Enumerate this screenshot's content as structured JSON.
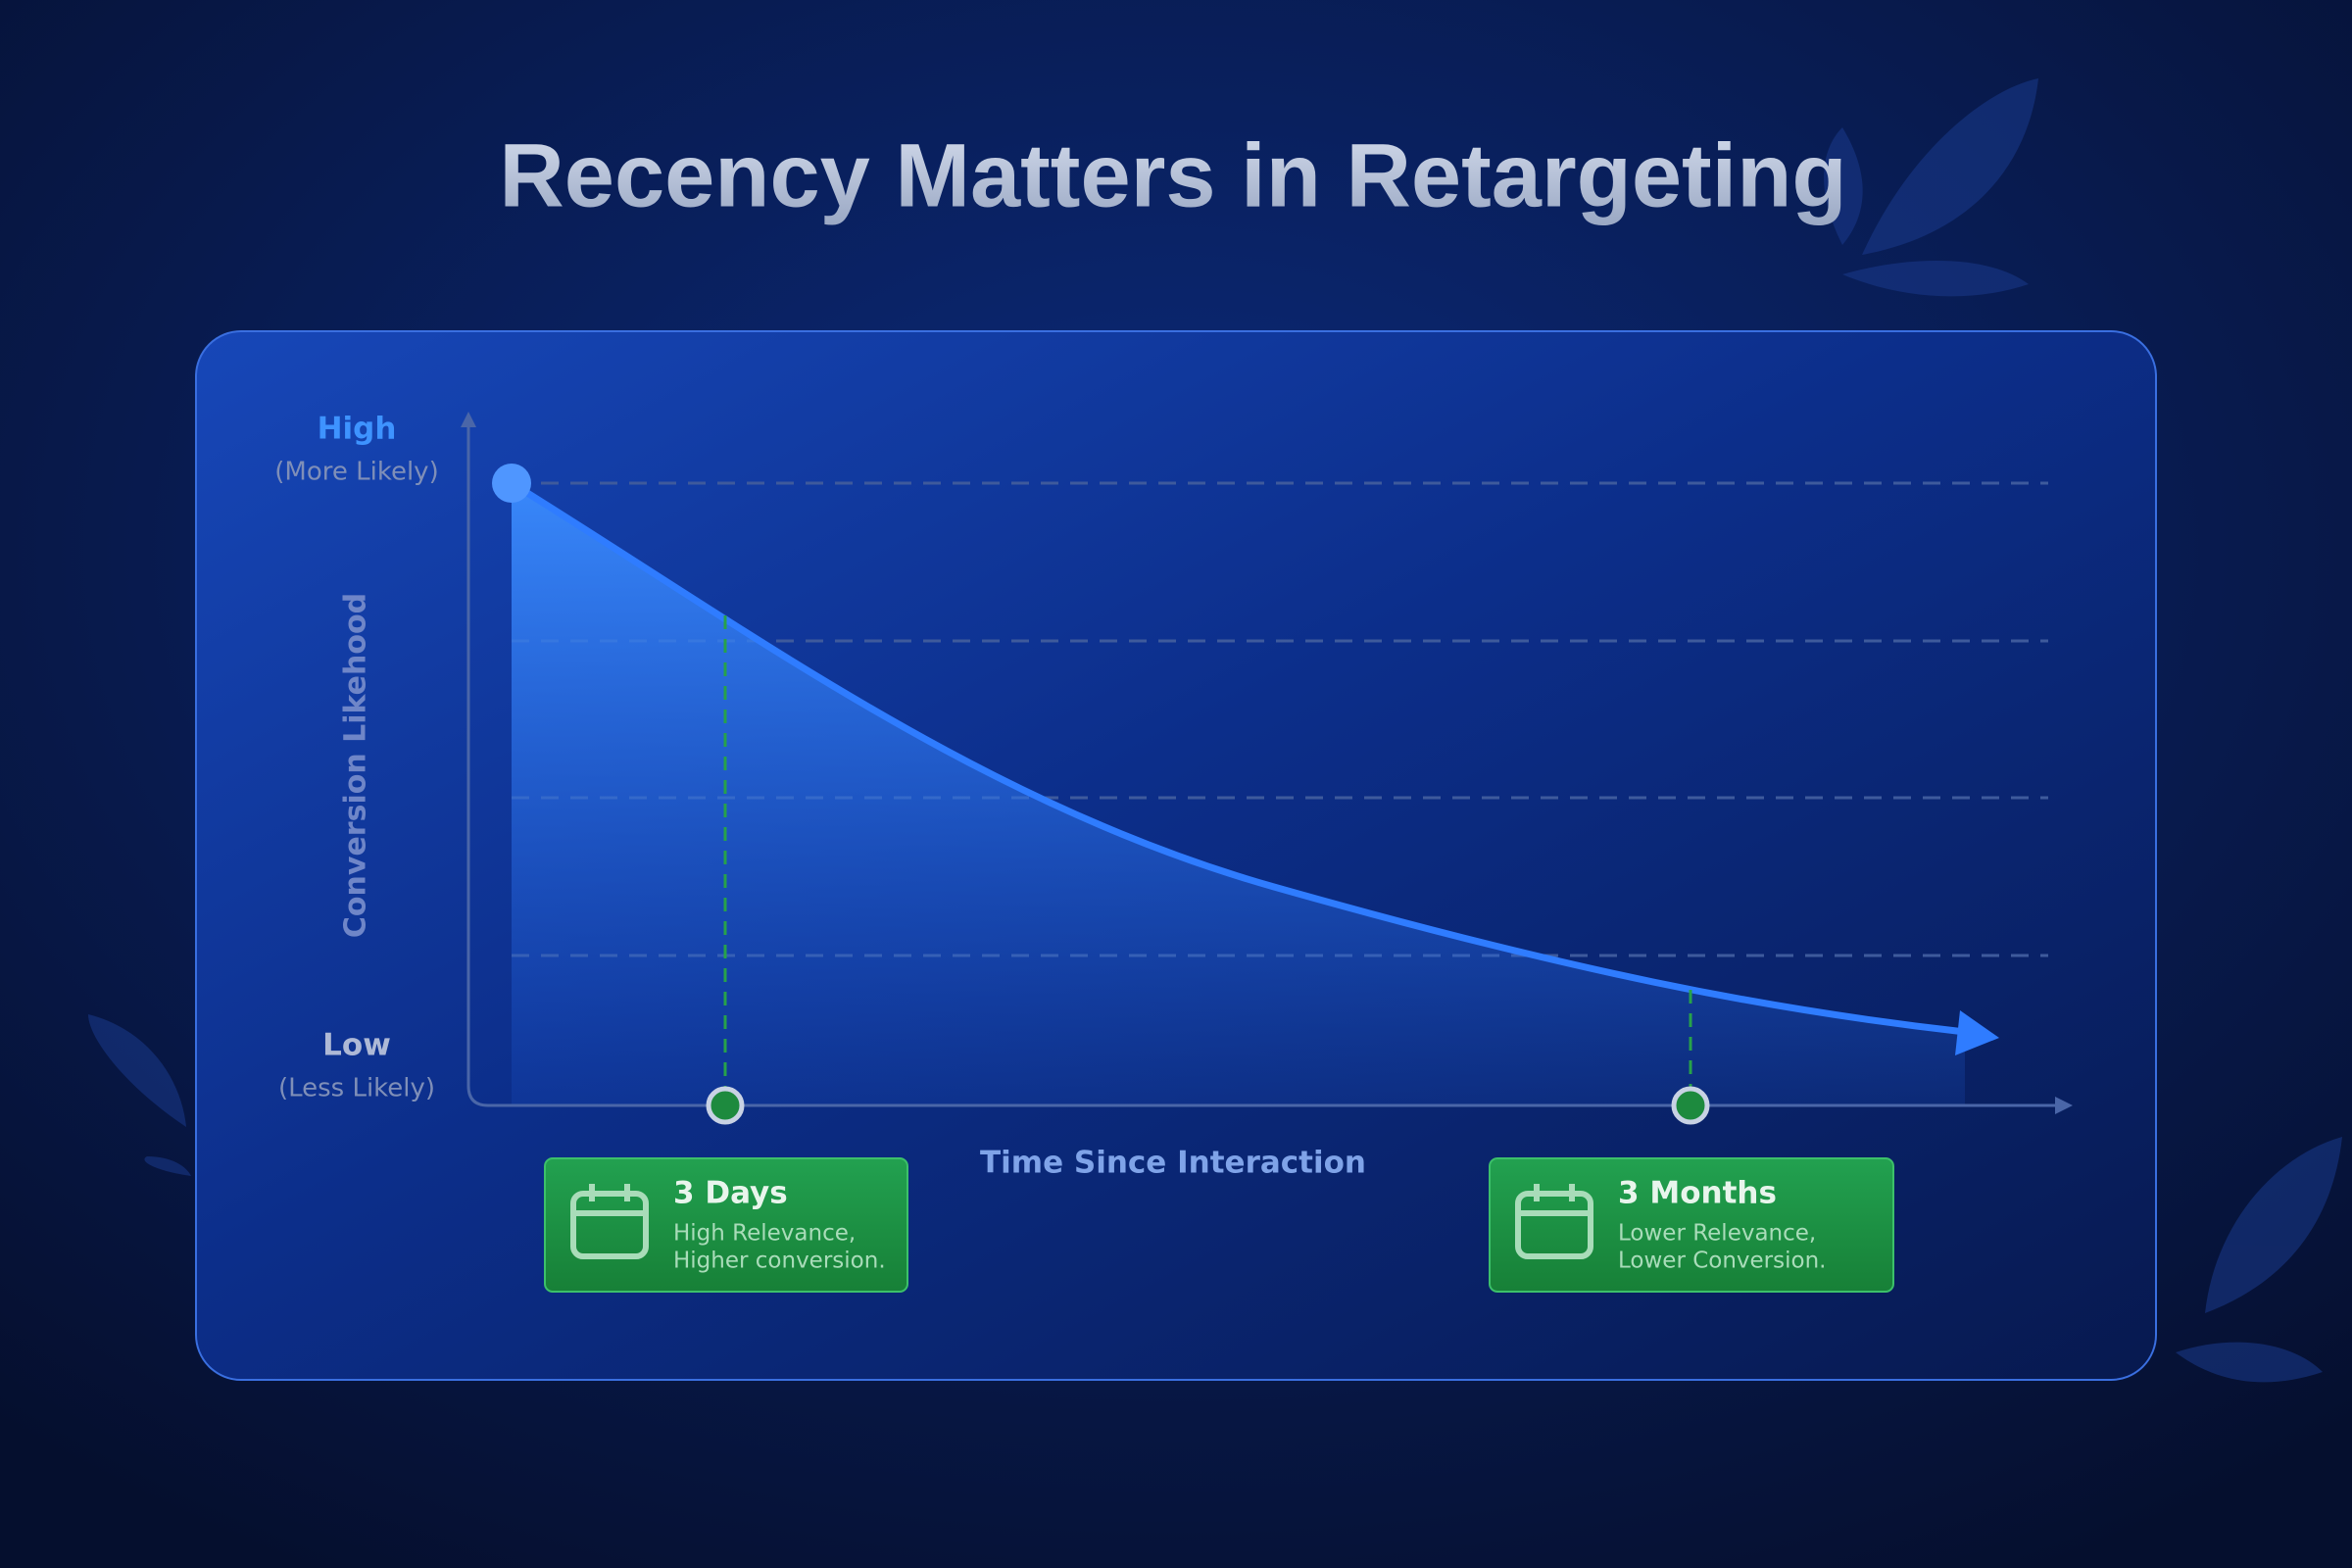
{
  "header": {
    "title": "Recency Matters in Retargeting"
  },
  "y_axis": {
    "high": "High",
    "high_note": "(More Likely)",
    "low": "Low",
    "low_note": "(Less Likely)",
    "label": "Conversion Likehood"
  },
  "x_axis": {
    "label": "Time Since Interaction"
  },
  "cards": [
    {
      "title": "3 Days",
      "lines": [
        "High Relevance,",
        "Higher conversion."
      ]
    },
    {
      "title": "3 Months",
      "lines": [
        "Lower Relevance,",
        "Lower Conversion."
      ]
    }
  ]
}
